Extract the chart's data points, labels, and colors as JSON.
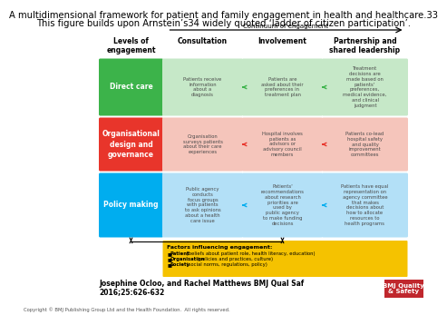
{
  "title_line1": "A multidimensional framework for patient and family engagement in health and healthcare.33",
  "title_line2": "This figure builds upon Arnstein’s34 widely quoted ‘ladder of citizen participation’.",
  "title_fontsize": 7.2,
  "bg_color": "#ffffff",
  "header_continuum": "Continuum of engagement",
  "col_headers": [
    "Levels of\nengagement",
    "Consultation",
    "Involvement",
    "Partnership and\nshared leadership"
  ],
  "row_labels": [
    "Direct care",
    "Organisational\ndesign and\ngovernance",
    "Policy making"
  ],
  "row_label_colors": [
    "#3cb34a",
    "#e8352b",
    "#00adef"
  ],
  "row_label_light_colors": [
    "#c6e8c8",
    "#f5c5bb",
    "#b3e0f7"
  ],
  "cell_texts": [
    [
      "Patients receive\ninformation\nabout a\ndiagnosis",
      "Patients are\nasked about their\npreferences in\ntreatment plan",
      "Treatment\ndecisions are\nmade based on\npatients'\npreferences,\nmedical evidence,\nand clinical\njudgment"
    ],
    [
      "Organisation\nsurveys patients\nabout their care\nexperiences",
      "Hospital involves\npatients as\nadvisors or\nadvisory council\nmembers",
      "Patients co-lead\nhospital safety\nand quality\nimprovement\ncommittees"
    ],
    [
      "Public agency\nconducts\nfocus groups\nwith patients\nto ask opinions\nabout a health\ncare issue",
      "Patients'\nrecommendations\nabout research\npriorities are\nused by\npublic agency\nto make funding\ndecisions",
      "Patients have equal\nrepresentation on\nagency committee\nthat makes\ndecisions about\nhow to allocate\nresources to\nhealth programs"
    ]
  ],
  "factors_title": "Factors influencing engagement:",
  "factors_bold": [
    "Patient",
    "Organisation",
    "Society"
  ],
  "factors_normal": [
    " (beliefs about patient role, health literacy, education)",
    " (policies and practices, culture)",
    " (social norms, regulations, policy)"
  ],
  "factors_bg": "#f5c200",
  "author_line": "Josephine Ocloo, and Rachel Matthews BMJ Qual Saf",
  "journal_line": "2016;25:626-632",
  "bmj_label": "BMJ Quality\n& Safety",
  "bmj_color": "#c0272d",
  "copyright": "Copyright © BMJ Publishing Group Ltd and the Health Foundation.  All rights reserved."
}
